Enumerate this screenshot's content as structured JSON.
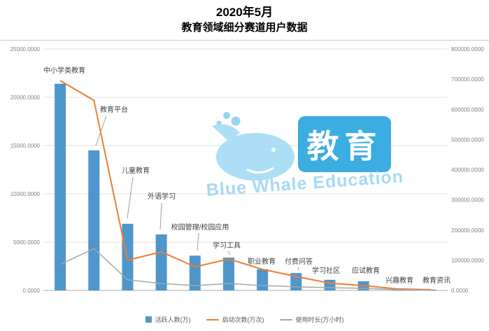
{
  "title": {
    "line1": "2020年5月",
    "line2": "教育领域细分赛道用户数据"
  },
  "watermark": {
    "box_text": "教育",
    "en_text": "Blue Whale Education"
  },
  "chart_data": {
    "type": "combo",
    "title": "2020年5月 教育领域细分赛道用户数据",
    "categories": [
      "中小学类教育",
      "教育平台",
      "儿童教育",
      "外语学习",
      "校园管理/校园应用",
      "学习工具",
      "职业教育",
      "付费问答",
      "学习社区",
      "应试教育",
      "兴趣教育",
      "教育资讯"
    ],
    "series": [
      {
        "name": "活跃人数(万)",
        "type": "bar",
        "axis": "left",
        "color": "#4E96CB",
        "values": [
          21400,
          14500,
          6900,
          5800,
          3600,
          3400,
          2200,
          1800,
          1100,
          950,
          150,
          80
        ]
      },
      {
        "name": "启动次数(万次)",
        "type": "line",
        "axis": "right",
        "color": "#ED7D31",
        "values": [
          695000,
          630000,
          100000,
          128000,
          78000,
          104000,
          70000,
          46000,
          24000,
          16000,
          5000,
          2500
        ]
      },
      {
        "name": "使用时长(万小时)",
        "type": "line",
        "axis": "right",
        "color": "#A6A6A6",
        "values": [
          86000,
          139000,
          35000,
          23000,
          16000,
          23000,
          16000,
          12000,
          9000,
          7000,
          2500,
          1200
        ]
      }
    ],
    "left_axis": {
      "min": 0,
      "max": 25000,
      "step": 5000,
      "decimals": 4
    },
    "right_axis": {
      "min": 0,
      "max": 800000,
      "step": 100000,
      "decimals": 4
    },
    "grid": true,
    "legend_position": "bottom"
  }
}
